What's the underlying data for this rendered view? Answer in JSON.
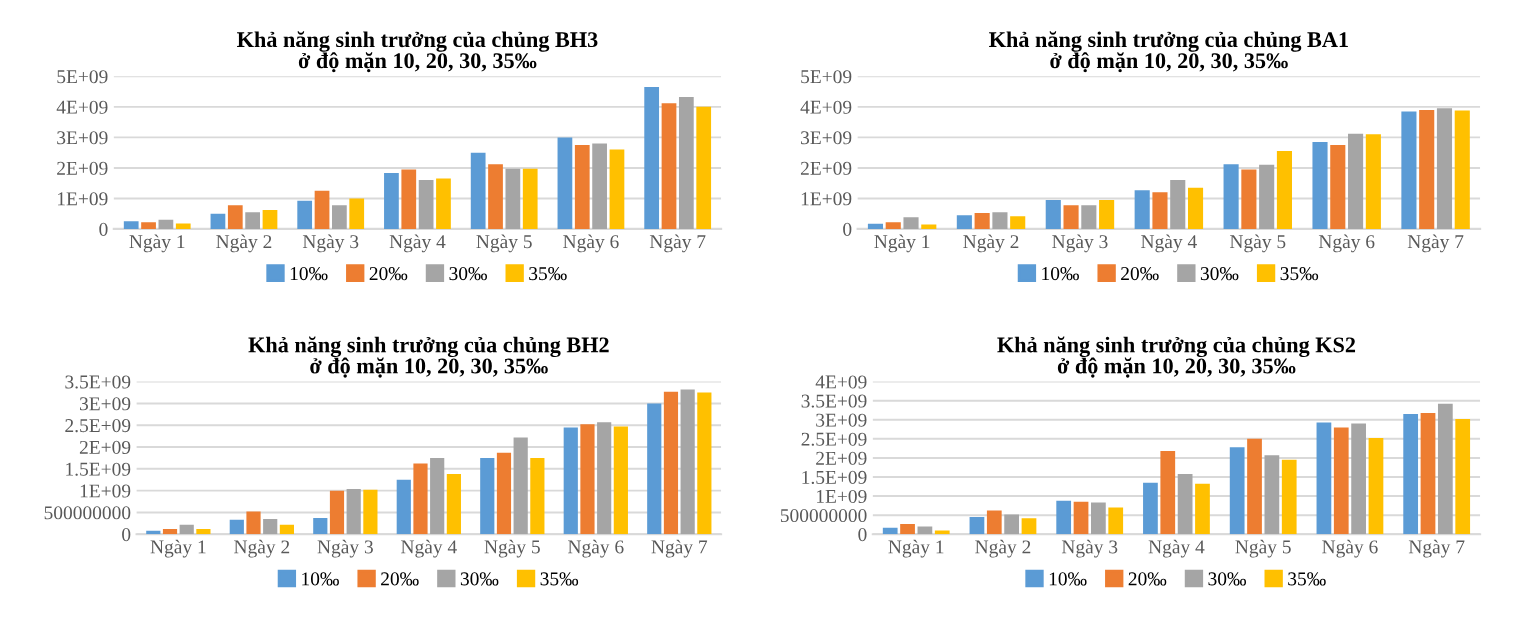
{
  "chart_data": [
    {
      "type": "bar",
      "title": "Khả năng sinh trưởng của chủng BH3\nở độ mặn 10, 20, 30, 35‰",
      "categories": [
        "Ngày 1",
        "Ngày 2",
        "Ngày 3",
        "Ngày 4",
        "Ngày 5",
        "Ngày 6",
        "Ngày 7"
      ],
      "ylim": [
        0,
        5000000000.0
      ],
      "yticks": [
        0,
        {
          "value": 1000000000.0,
          "label": "1E+09"
        },
        {
          "value": 2000000000.0,
          "label": "2E+09"
        },
        {
          "value": 3000000000.0,
          "label": "3E+09"
        },
        {
          "value": 4000000000.0,
          "label": "4E+09"
        },
        {
          "value": 5000000000.0,
          "label": "5E+09"
        }
      ],
      "grid": "y",
      "legend": "bottom",
      "series": [
        {
          "name": "10‰",
          "color": "#5b9bd5",
          "values": [
            250000000.0,
            500000000.0,
            920000000.0,
            1830000000.0,
            2500000000.0,
            3000000000.0,
            4650000000.0
          ]
        },
        {
          "name": "20‰",
          "color": "#ed7d31",
          "values": [
            220000000.0,
            780000000.0,
            1250000000.0,
            1950000000.0,
            2120000000.0,
            2750000000.0,
            4120000000.0
          ]
        },
        {
          "name": "30‰",
          "color": "#a5a5a5",
          "values": [
            300000000.0,
            550000000.0,
            780000000.0,
            1600000000.0,
            1970000000.0,
            2800000000.0,
            4320000000.0
          ]
        },
        {
          "name": "35‰",
          "color": "#ffc000",
          "values": [
            180000000.0,
            620000000.0,
            1000000000.0,
            1650000000.0,
            1970000000.0,
            2600000000.0,
            4000000000.0
          ]
        }
      ]
    },
    {
      "type": "bar",
      "title": "Khả năng sinh trưởng của chủng BA1\nở độ mặn 10, 20, 30, 35‰",
      "categories": [
        "Ngày 1",
        "Ngày 2",
        "Ngày 3",
        "Ngày 4",
        "Ngày 5",
        "Ngày 6",
        "Ngày 7"
      ],
      "ylim": [
        0,
        5000000000.0
      ],
      "yticks": [
        0,
        {
          "value": 1000000000.0,
          "label": "1E+09"
        },
        {
          "value": 2000000000.0,
          "label": "2E+09"
        },
        {
          "value": 3000000000.0,
          "label": "3E+09"
        },
        {
          "value": 4000000000.0,
          "label": "4E+09"
        },
        {
          "value": 5000000000.0,
          "label": "5E+09"
        }
      ],
      "grid": "y",
      "legend": "bottom",
      "series": [
        {
          "name": "10‰",
          "color": "#5b9bd5",
          "values": [
            170000000.0,
            450000000.0,
            950000000.0,
            1270000000.0,
            2120000000.0,
            2850000000.0,
            3850000000.0
          ]
        },
        {
          "name": "20‰",
          "color": "#ed7d31",
          "values": [
            220000000.0,
            520000000.0,
            780000000.0,
            1200000000.0,
            1950000000.0,
            2750000000.0,
            3900000000.0
          ]
        },
        {
          "name": "30‰",
          "color": "#a5a5a5",
          "values": [
            380000000.0,
            550000000.0,
            780000000.0,
            1600000000.0,
            2100000000.0,
            3120000000.0,
            3950000000.0
          ]
        },
        {
          "name": "35‰",
          "color": "#ffc000",
          "values": [
            150000000.0,
            420000000.0,
            950000000.0,
            1350000000.0,
            2550000000.0,
            3100000000.0,
            3880000000.0
          ]
        }
      ]
    },
    {
      "type": "bar",
      "title": "Khả năng sinh trưởng của chủng BH2\nở độ mặn 10, 20, 30, 35‰",
      "categories": [
        "Ngày 1",
        "Ngày 2",
        "Ngày 3",
        "Ngày 4",
        "Ngày 5",
        "Ngày 6",
        "Ngày 7"
      ],
      "ylim": [
        0,
        3500000000.0
      ],
      "yticks": [
        0,
        500000000,
        {
          "value": 1000000000.0,
          "label": "1E+09"
        },
        {
          "value": 1500000000.0,
          "label": "1.5E+09"
        },
        {
          "value": 2000000000.0,
          "label": "2E+09"
        },
        {
          "value": 2500000000.0,
          "label": "2.5E+09"
        },
        {
          "value": 3000000000.0,
          "label": "3E+09"
        },
        {
          "value": 3500000000.0,
          "label": "3.5E+09"
        }
      ],
      "grid": "y",
      "legend": "bottom",
      "series": [
        {
          "name": "10‰",
          "color": "#5b9bd5",
          "values": [
            80000000.0,
            330000000.0,
            370000000.0,
            1250000000.0,
            1750000000.0,
            2450000000.0,
            3000000000.0
          ]
        },
        {
          "name": "20‰",
          "color": "#ed7d31",
          "values": [
            120000000.0,
            520000000.0,
            1000000000.0,
            1620000000.0,
            1870000000.0,
            2520000000.0,
            3270000000.0
          ]
        },
        {
          "name": "30‰",
          "color": "#a5a5a5",
          "values": [
            220000000.0,
            350000000.0,
            1040000000.0,
            1750000000.0,
            2220000000.0,
            2570000000.0,
            3320000000.0
          ]
        },
        {
          "name": "35‰",
          "color": "#ffc000",
          "values": [
            120000000.0,
            220000000.0,
            1020000000.0,
            1380000000.0,
            1750000000.0,
            2470000000.0,
            3250000000.0
          ]
        }
      ]
    },
    {
      "type": "bar",
      "title": "Khả năng sinh trưởng của chủng KS2\nở độ mặn 10, 20, 30, 35‰",
      "categories": [
        "Ngày 1",
        "Ngày 2",
        "Ngày 3",
        "Ngày 4",
        "Ngày 5",
        "Ngày 6",
        "Ngày 7"
      ],
      "ylim": [
        0,
        4000000000.0
      ],
      "yticks": [
        0,
        500000000,
        {
          "value": 1000000000.0,
          "label": "1E+09"
        },
        {
          "value": 1500000000.0,
          "label": "1.5E+09"
        },
        {
          "value": 2000000000.0,
          "label": "2E+09"
        },
        {
          "value": 2500000000.0,
          "label": "2.5E+09"
        },
        {
          "value": 3000000000.0,
          "label": "3E+09"
        },
        {
          "value": 3500000000.0,
          "label": "3.5E+09"
        },
        {
          "value": 4000000000.0,
          "label": "4E+09"
        }
      ],
      "grid": "y",
      "legend": "bottom",
      "series": [
        {
          "name": "10‰",
          "color": "#5b9bd5",
          "values": [
            170000000.0,
            450000000.0,
            880000000.0,
            1350000000.0,
            2280000000.0,
            2930000000.0,
            3150000000.0
          ]
        },
        {
          "name": "20‰",
          "color": "#ed7d31",
          "values": [
            270000000.0,
            620000000.0,
            850000000.0,
            2180000000.0,
            2500000000.0,
            2800000000.0,
            3180000000.0
          ]
        },
        {
          "name": "30‰",
          "color": "#a5a5a5",
          "values": [
            200000000.0,
            520000000.0,
            830000000.0,
            1580000000.0,
            2070000000.0,
            2900000000.0,
            3420000000.0
          ]
        },
        {
          "name": "35‰",
          "color": "#ffc000",
          "values": [
            100000000.0,
            420000000.0,
            700000000.0,
            1320000000.0,
            1950000000.0,
            2520000000.0,
            3020000000.0
          ]
        }
      ]
    }
  ]
}
